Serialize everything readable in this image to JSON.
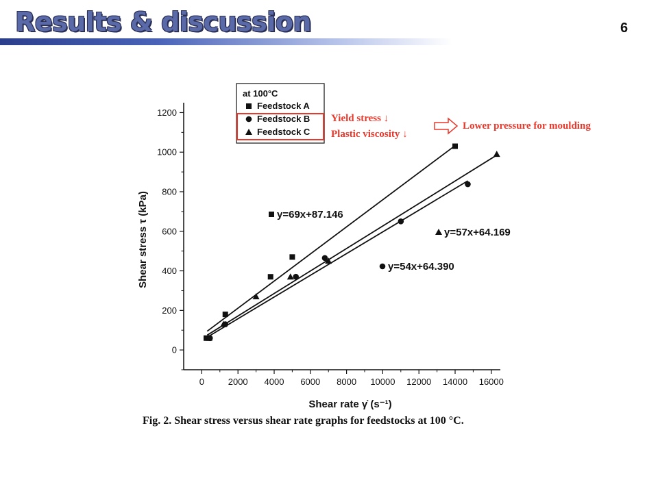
{
  "slide": {
    "title": "Results & discussion",
    "page_number": "6"
  },
  "caption": "Fig. 2. Shear stress versus shear rate graphs for feedstocks at 100 °C.",
  "annotations": {
    "yield_stress": "Yield stress ↓",
    "plastic_viscosity": "Plastic viscosity ↓",
    "conclusion": "Lower pressure for moulding",
    "accent_color": "#e8382b"
  },
  "chart_data": {
    "type": "scatter",
    "title": "at 100°C",
    "xlabel": "Shear rate γ̇ (s⁻¹)",
    "ylabel": "Shear stress τ (kPa)",
    "xlim": [
      -1000,
      16500
    ],
    "ylim": [
      -100,
      1250
    ],
    "xticks": [
      0,
      2000,
      4000,
      6000,
      8000,
      10000,
      12000,
      14000,
      16000
    ],
    "yticks": [
      0,
      200,
      400,
      600,
      800,
      1000,
      1200
    ],
    "legend_position": "top-left",
    "series": [
      {
        "name": "Feedstock A",
        "marker": "square",
        "points": [
          [
            250,
            60
          ],
          [
            1300,
            180
          ],
          [
            3800,
            370
          ],
          [
            5000,
            470
          ],
          [
            14000,
            1030
          ]
        ],
        "fit": {
          "label": "y=69x+87.146",
          "x_range": [
            300,
            14100
          ],
          "y_range": [
            95,
            1040
          ]
        }
      },
      {
        "name": "Feedstock B",
        "marker": "circle",
        "points": [
          [
            450,
            60
          ],
          [
            1300,
            130
          ],
          [
            5200,
            370
          ],
          [
            6800,
            465
          ],
          [
            11000,
            650
          ],
          [
            14700,
            838
          ]
        ],
        "fit": {
          "label": "y=54x+64.390",
          "x_range": [
            400,
            14700
          ],
          "y_range": [
            70,
            855
          ]
        }
      },
      {
        "name": "Feedstock C",
        "marker": "triangle",
        "points": [
          [
            400,
            60
          ],
          [
            1200,
            130
          ],
          [
            3000,
            270
          ],
          [
            4900,
            370
          ],
          [
            7000,
            450
          ],
          [
            16300,
            990
          ]
        ],
        "fit": {
          "label": "y=57x+64.169",
          "x_range": [
            300,
            16300
          ],
          "y_range": [
            75,
            985
          ]
        }
      }
    ]
  }
}
